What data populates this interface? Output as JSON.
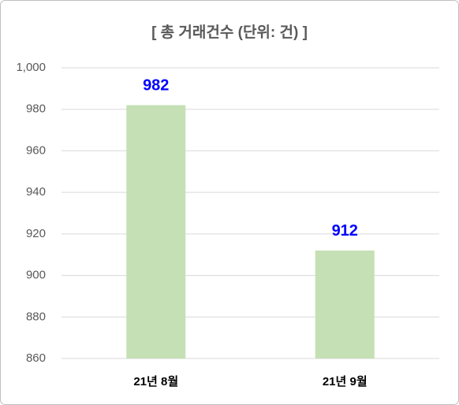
{
  "chart_data": {
    "type": "bar",
    "title": "[ 총 거래건수 (단위: 건) ]",
    "categories": [
      "21년 8월",
      "21년 9월"
    ],
    "values": [
      982,
      912
    ],
    "color": "#c5e0b4",
    "label_color": "#0000ff",
    "ylim": [
      860,
      1000
    ],
    "yticks": [
      860,
      880,
      900,
      920,
      940,
      960,
      980,
      {
        "value": 1000,
        "label": "1,000"
      }
    ],
    "grid": true
  }
}
